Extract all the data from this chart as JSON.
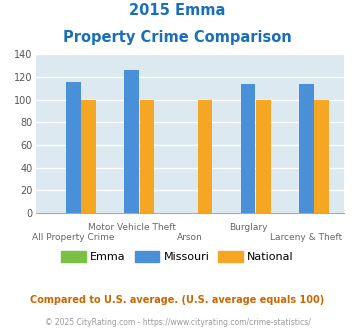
{
  "title_line1": "2015 Emma",
  "title_line2": "Property Crime Comparison",
  "title_color": "#1a6fbb",
  "categories": [
    "All Property Crime",
    "Motor Vehicle Theft",
    "Arson",
    "Burglary",
    "Larceny & Theft"
  ],
  "emma_values": [
    0,
    0,
    0,
    0,
    0
  ],
  "missouri_values": [
    116,
    126,
    0,
    114,
    114
  ],
  "national_values": [
    100,
    100,
    100,
    100,
    100
  ],
  "emma_color": "#7ac143",
  "missouri_color": "#4a90d9",
  "national_color": "#f5a623",
  "ylim": [
    0,
    140
  ],
  "yticks": [
    0,
    20,
    40,
    60,
    80,
    100,
    120,
    140
  ],
  "background_color": "#dce9f0",
  "grid_color": "#ffffff",
  "legend_labels": [
    "Emma",
    "Missouri",
    "National"
  ],
  "x_top_labels": [
    "",
    "Motor Vehicle Theft",
    "",
    "Burglary",
    ""
  ],
  "x_bot_labels": [
    "All Property Crime",
    "",
    "Arson",
    "",
    "Larceny & Theft"
  ],
  "footnote1": "Compared to U.S. average. (U.S. average equals 100)",
  "footnote2": "© 2025 CityRating.com - https://www.cityrating.com/crime-statistics/",
  "footnote1_color": "#cc6600",
  "footnote2_color": "#999999"
}
